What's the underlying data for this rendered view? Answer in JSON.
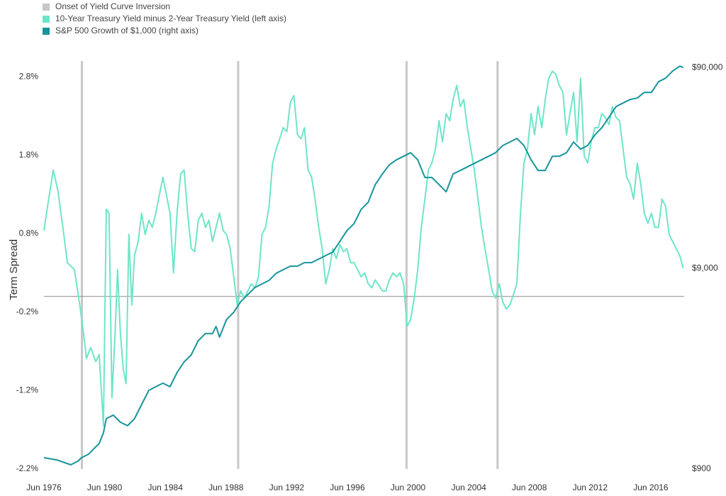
{
  "chart_data": {
    "type": "line",
    "legend": "top-left",
    "y_label": "Term Spread",
    "xlim": [
      1976.5,
      2018.7
    ],
    "xticks": [
      {
        "value": 1976.5,
        "label": "Jun 1976"
      },
      {
        "value": 1980.5,
        "label": "Jun 1980"
      },
      {
        "value": 1984.5,
        "label": "Jun 1984"
      },
      {
        "value": 1988.5,
        "label": "Jun 1988"
      },
      {
        "value": 1992.5,
        "label": "Jun 1992"
      },
      {
        "value": 1996.5,
        "label": "Jun 1996"
      },
      {
        "value": 2000.5,
        "label": "Jun 2000"
      },
      {
        "value": 2004.5,
        "label": "Jun 2004"
      },
      {
        "value": 2008.5,
        "label": "Jun 2008"
      },
      {
        "value": 2012.5,
        "label": "Jun 2012"
      },
      {
        "value": 2016.5,
        "label": "Jun 2016"
      }
    ],
    "ylim": [
      -2.2,
      3.0
    ],
    "yticks": [
      {
        "value": -2.2,
        "label": "-2.2%"
      },
      {
        "value": -1.2,
        "label": "-1.2%"
      },
      {
        "value": -0.2,
        "label": "-0.2%"
      },
      {
        "value": 0.8,
        "label": "0.8%"
      },
      {
        "value": 1.8,
        "label": "1.8%"
      },
      {
        "value": 2.8,
        "label": "2.8%"
      }
    ],
    "y2log": true,
    "y2lim": [
      900,
      97000
    ],
    "y2ticks": [
      {
        "value": 900,
        "label": "$900"
      },
      {
        "value": 9000,
        "label": "$9,000"
      },
      {
        "value": 90000,
        "label": "$90,000"
      }
    ],
    "hline": 0,
    "inversions": {
      "name": "Onset of Yield Curve Inversion",
      "color": "#c8c8c8",
      "x": [
        1979.0,
        1989.3,
        2000.4,
        2006.4
      ]
    },
    "series": [
      {
        "name": "10-Year Treasury Yield minus 2-Year Treasury Yield (left axis)",
        "color": "#6ee5c9",
        "x": [
          1976.5,
          1976.78,
          1977.11,
          1977.43,
          1977.81,
          1978.04,
          1978.51,
          1978.83,
          1979.11,
          1979.3,
          1979.58,
          1979.91,
          1980.14,
          1980.42,
          1980.61,
          1980.79,
          1980.98,
          1981.17,
          1981.35,
          1981.54,
          1981.73,
          1981.91,
          1982.1,
          1982.29,
          1982.47,
          1982.71,
          1982.94,
          1983.17,
          1983.41,
          1983.64,
          1983.87,
          1984.34,
          1984.81,
          1985.04,
          1985.27,
          1985.51,
          1985.74,
          1985.97,
          1986.21,
          1986.44,
          1986.67,
          1986.91,
          1987.14,
          1987.37,
          1987.61,
          1987.84,
          1988.07,
          1988.31,
          1988.54,
          1988.77,
          1989.01,
          1989.24,
          1989.47,
          1989.71,
          1989.94,
          1990.17,
          1990.41,
          1990.64,
          1990.87,
          1991.11,
          1991.34,
          1991.57,
          1991.81,
          1992.04,
          1992.27,
          1992.51,
          1992.74,
          1992.97,
          1993.21,
          1993.44,
          1993.67,
          1993.91,
          1994.14,
          1994.37,
          1994.61,
          1994.84,
          1995.07,
          1995.31,
          1995.54,
          1995.77,
          1996.01,
          1996.24,
          1996.47,
          1996.71,
          1996.94,
          1997.17,
          1997.41,
          1997.64,
          1997.87,
          1998.11,
          1998.34,
          1998.81,
          1999.04,
          1999.27,
          1999.51,
          1999.74,
          1999.97,
          2000.21,
          2000.44,
          2000.67,
          2000.91,
          2001.14,
          2001.37,
          2001.61,
          2001.84,
          2002.07,
          2002.31,
          2002.54,
          2002.77,
          2003.01,
          2003.24,
          2003.47,
          2003.71,
          2003.94,
          2004.17,
          2004.41,
          2004.64,
          2004.87,
          2005.11,
          2005.34,
          2005.57,
          2005.81,
          2006.04,
          2006.27,
          2006.51,
          2006.74,
          2006.97,
          2007.21,
          2007.44,
          2007.67,
          2007.91,
          2008.14,
          2008.37,
          2008.61,
          2008.84,
          2009.07,
          2009.31,
          2009.54,
          2009.77,
          2010.01,
          2010.24,
          2010.47,
          2010.71,
          2010.94,
          2011.17,
          2011.41,
          2011.64,
          2011.87,
          2012.11,
          2012.34,
          2012.57,
          2012.81,
          2013.04,
          2013.27,
          2013.51,
          2013.74,
          2013.97,
          2014.21,
          2014.44,
          2014.67,
          2014.91,
          2015.14,
          2015.37,
          2015.61,
          2015.84,
          2016.07,
          2016.31,
          2016.54,
          2016.77,
          2017.01,
          2017.24,
          2017.47,
          2017.71,
          2017.94,
          2018.17,
          2018.41,
          2018.64
        ],
        "values": [
          0.84,
          1.2,
          1.61,
          1.34,
          0.79,
          0.43,
          0.34,
          -0.07,
          -0.47,
          -0.79,
          -0.65,
          -0.83,
          -0.74,
          -1.65,
          1.11,
          1.06,
          -1.29,
          -0.56,
          0.34,
          -0.47,
          -0.93,
          -1.11,
          0.79,
          -0.11,
          0.52,
          0.7,
          1.06,
          0.79,
          0.97,
          0.88,
          1.06,
          1.52,
          1.06,
          0.3,
          1.06,
          1.56,
          1.61,
          1.06,
          0.61,
          0.57,
          0.97,
          1.06,
          0.88,
          0.97,
          0.7,
          0.88,
          1.06,
          0.84,
          0.79,
          0.61,
          0.25,
          -0.11,
          0.07,
          -0.02,
          0.07,
          0.16,
          0.11,
          0.25,
          0.79,
          0.88,
          1.15,
          1.7,
          1.88,
          2.01,
          2.15,
          2.1,
          2.47,
          2.56,
          2.06,
          2.01,
          2.15,
          1.61,
          1.52,
          1.24,
          0.88,
          0.61,
          0.16,
          0.34,
          0.61,
          0.48,
          0.66,
          0.57,
          0.61,
          0.43,
          0.43,
          0.34,
          0.25,
          0.3,
          0.16,
          0.11,
          0.21,
          0.07,
          0.07,
          0.21,
          0.3,
          0.25,
          0.3,
          0.16,
          -0.38,
          -0.29,
          -0.02,
          0.34,
          0.88,
          1.24,
          1.61,
          1.7,
          1.88,
          2.24,
          1.97,
          2.33,
          2.24,
          2.51,
          2.69,
          2.42,
          2.51,
          2.15,
          1.88,
          1.61,
          1.24,
          0.88,
          0.61,
          0.34,
          0.07,
          -0.02,
          0.16,
          -0.07,
          -0.16,
          -0.11,
          0.02,
          0.16,
          1.06,
          1.7,
          1.88,
          2.33,
          2.06,
          2.42,
          2.15,
          2.51,
          2.78,
          2.87,
          2.83,
          2.69,
          2.6,
          2.06,
          2.33,
          2.6,
          1.97,
          2.78,
          1.79,
          1.7,
          1.97,
          2.15,
          2.15,
          2.33,
          2.28,
          2.19,
          2.42,
          2.28,
          2.24,
          1.88,
          1.52,
          1.43,
          1.24,
          1.7,
          1.43,
          1.06,
          0.93,
          1.06,
          0.88,
          0.88,
          1.24,
          1.15,
          0.79,
          0.7,
          0.61,
          0.52,
          0.36
        ]
      },
      {
        "name": "S&P 500 Growth of $1,000 (right axis)",
        "color": "#17959b",
        "axis": "y2",
        "x": [
          1976.5,
          1977.34,
          1978.27,
          1978.74,
          1978.97,
          1979.44,
          1979.91,
          1980.14,
          1980.42,
          1980.61,
          1981.07,
          1981.54,
          1982.01,
          1982.47,
          1982.94,
          1983.41,
          1983.87,
          1984.34,
          1984.81,
          1985.27,
          1985.74,
          1986.21,
          1986.67,
          1987.14,
          1987.61,
          1987.84,
          1988.07,
          1988.54,
          1989.01,
          1989.47,
          1989.94,
          1990.41,
          1990.87,
          1991.34,
          1991.81,
          1992.27,
          1992.74,
          1993.21,
          1993.67,
          1994.14,
          1994.61,
          1995.07,
          1995.54,
          1996.01,
          1996.47,
          1996.94,
          1997.41,
          1997.87,
          1998.34,
          1998.81,
          1999.27,
          1999.74,
          2000.21,
          2000.67,
          2001.14,
          2001.61,
          2002.07,
          2002.54,
          2003.01,
          2003.47,
          2003.94,
          2004.41,
          2004.87,
          2005.34,
          2005.81,
          2006.27,
          2006.74,
          2007.21,
          2007.67,
          2008.14,
          2008.61,
          2009.07,
          2009.54,
          2010.01,
          2010.47,
          2010.94,
          2011.41,
          2011.87,
          2012.34,
          2012.81,
          2013.27,
          2013.74,
          2014.21,
          2014.67,
          2015.14,
          2015.61,
          2016.07,
          2016.54,
          2017.01,
          2017.47,
          2017.94,
          2018.41,
          2018.64
        ],
        "values": [
          1025,
          1000,
          945,
          985,
          1025,
          1067,
          1160,
          1206,
          1363,
          1604,
          1670,
          1540,
          1479,
          1604,
          1887,
          2220,
          2313,
          2409,
          2313,
          2722,
          3075,
          3336,
          3925,
          4258,
          4258,
          4618,
          4088,
          5010,
          5435,
          6141,
          6662,
          7226,
          7527,
          7839,
          8503,
          8854,
          9222,
          9222,
          9604,
          9604,
          10004,
          10419,
          10853,
          12260,
          13851,
          15030,
          17682,
          19186,
          23510,
          26560,
          29520,
          31250,
          32550,
          33900,
          31250,
          25510,
          25510,
          23510,
          21650,
          26560,
          27660,
          28810,
          30000,
          31250,
          32550,
          33900,
          36780,
          38310,
          39900,
          36780,
          31250,
          27660,
          27660,
          32550,
          32550,
          33900,
          38310,
          35310,
          36780,
          41560,
          45080,
          50910,
          57540,
          59920,
          62410,
          63430,
          67690,
          67690,
          76480,
          79660,
          86400,
          91460,
          90000
        ]
      }
    ]
  }
}
